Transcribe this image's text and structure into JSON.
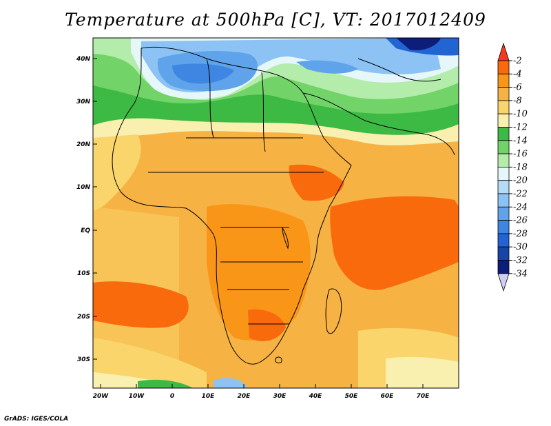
{
  "title": "Temperature at 500hPa [C], VT: 2017012409",
  "credit": "GrADS: IGES/COLA",
  "map": {
    "lat_ticks": [
      "40N",
      "30N",
      "20N",
      "10N",
      "EQ",
      "10S",
      "20S",
      "30S"
    ],
    "lon_ticks": [
      "20W",
      "10W",
      "0",
      "10E",
      "20E",
      "30E",
      "40E",
      "50E",
      "60E",
      "70E"
    ]
  },
  "colorbar": {
    "labels": [
      "-2",
      "-4",
      "-6",
      "-8",
      "-10",
      "-12",
      "-14",
      "-16",
      "-18",
      "-20",
      "-22",
      "-24",
      "-26",
      "-28",
      "-30",
      "-32",
      "-34"
    ],
    "colors": [
      "#f4391c",
      "#f96a0c",
      "#f99618",
      "#f7b244",
      "#f9d56c",
      "#f9f0b0",
      "#3dba44",
      "#72d468",
      "#b3ecab",
      "#e6f7f9",
      "#b5dcf7",
      "#8cc3f4",
      "#5fa4ea",
      "#3f86e3",
      "#2265d2",
      "#1644a8",
      "#0c1d7a",
      "#cfd0f4"
    ]
  }
}
